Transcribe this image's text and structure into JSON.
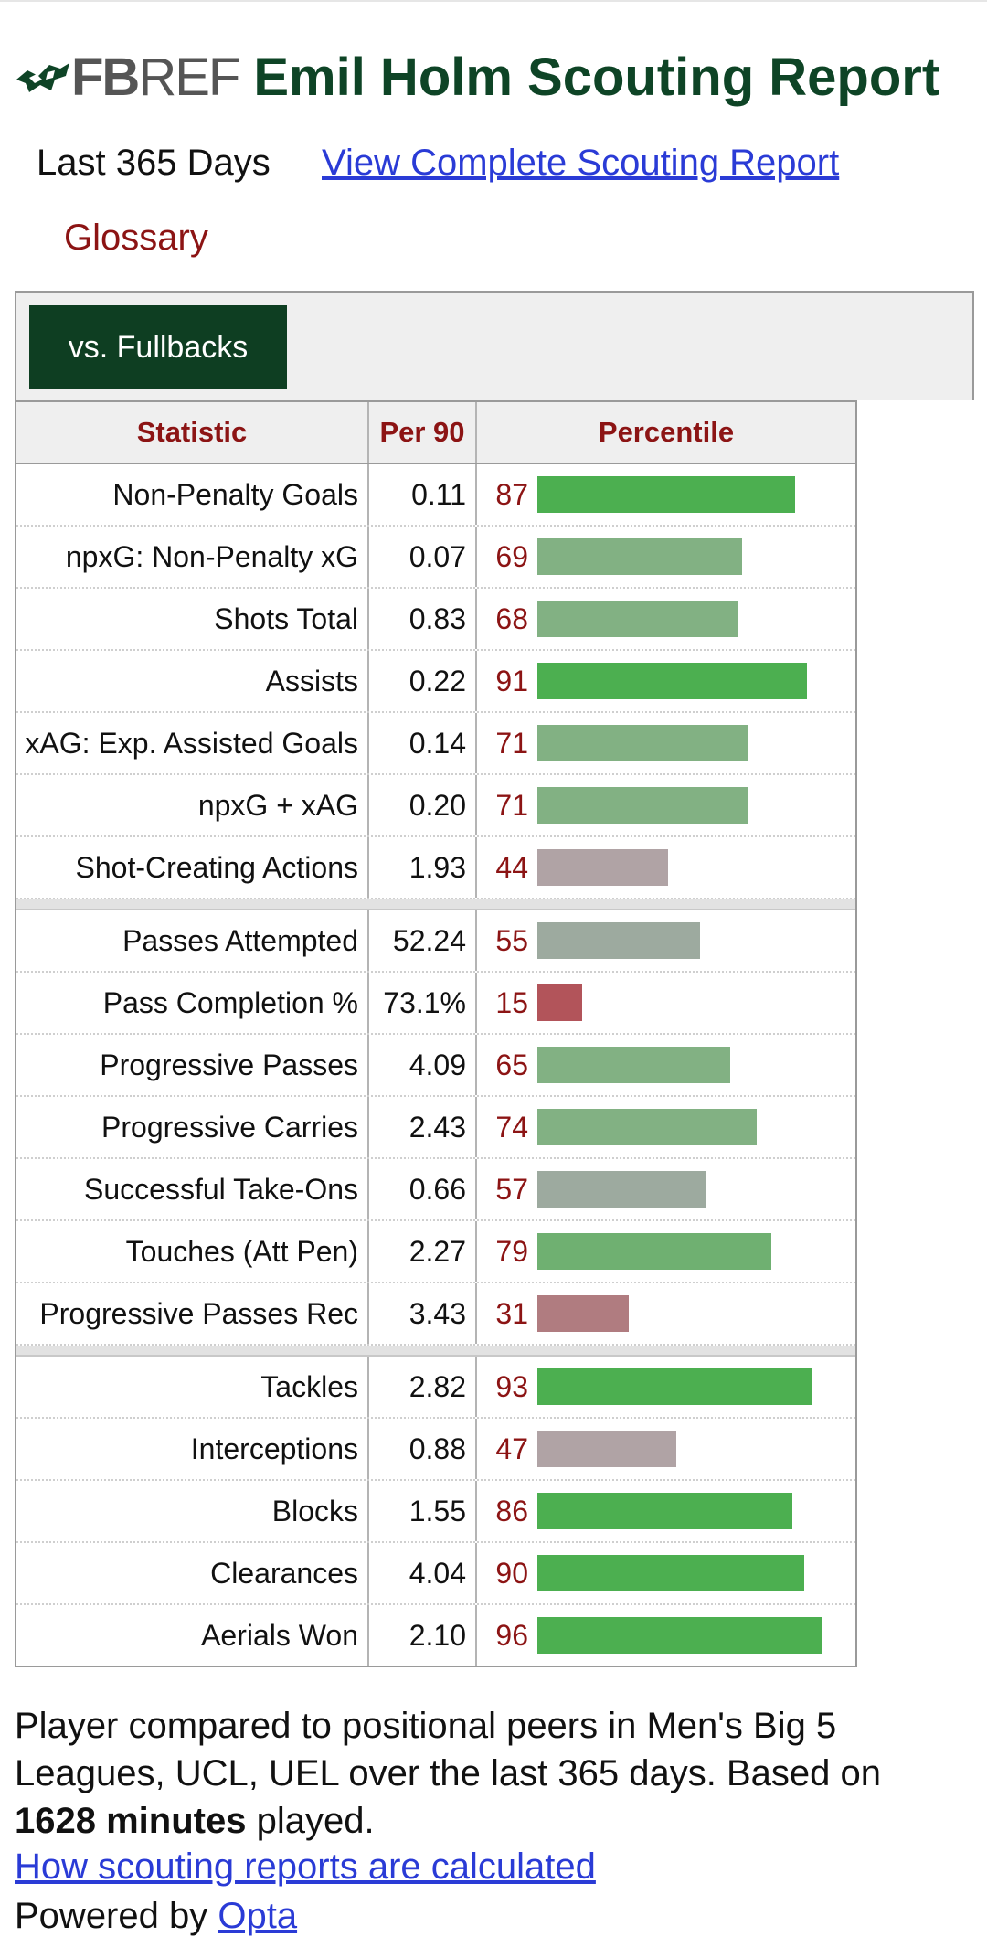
{
  "header": {
    "logo_fb": "FB",
    "logo_ref": "REF",
    "title": "Emil Holm Scouting Report"
  },
  "subheader": {
    "period": "Last 365 Days",
    "complete_link": "View Complete Scouting Report",
    "glossary": "Glossary"
  },
  "filter": {
    "label": "vs. Fullbacks"
  },
  "table": {
    "headers": {
      "statistic": "Statistic",
      "per90": "Per 90",
      "percentile": "Percentile"
    },
    "groups": [
      [
        {
          "stat": "Non-Penalty Goals",
          "per90": "0.11",
          "pct": 87
        },
        {
          "stat": "npxG: Non-Penalty xG",
          "per90": "0.07",
          "pct": 69
        },
        {
          "stat": "Shots Total",
          "per90": "0.83",
          "pct": 68
        },
        {
          "stat": "Assists",
          "per90": "0.22",
          "pct": 91
        },
        {
          "stat": "xAG: Exp. Assisted Goals",
          "per90": "0.14",
          "pct": 71
        },
        {
          "stat": "npxG + xAG",
          "per90": "0.20",
          "pct": 71
        },
        {
          "stat": "Shot-Creating Actions",
          "per90": "1.93",
          "pct": 44
        }
      ],
      [
        {
          "stat": "Passes Attempted",
          "per90": "52.24",
          "pct": 55
        },
        {
          "stat": "Pass Completion %",
          "per90": "73.1%",
          "pct": 15
        },
        {
          "stat": "Progressive Passes",
          "per90": "4.09",
          "pct": 65
        },
        {
          "stat": "Progressive Carries",
          "per90": "2.43",
          "pct": 74
        },
        {
          "stat": "Successful Take-Ons",
          "per90": "0.66",
          "pct": 57
        },
        {
          "stat": "Touches (Att Pen)",
          "per90": "2.27",
          "pct": 79
        },
        {
          "stat": "Progressive Passes Rec",
          "per90": "3.43",
          "pct": 31
        }
      ],
      [
        {
          "stat": "Tackles",
          "per90": "2.82",
          "pct": 93
        },
        {
          "stat": "Interceptions",
          "per90": "0.88",
          "pct": 47
        },
        {
          "stat": "Blocks",
          "per90": "1.55",
          "pct": 86
        },
        {
          "stat": "Clearances",
          "per90": "4.04",
          "pct": 90
        },
        {
          "stat": "Aerials Won",
          "per90": "2.10",
          "pct": 96
        }
      ]
    ]
  },
  "footer": {
    "text_before": "Player compared to positional peers in Men's Big 5 Leagues, UCL, UEL over the last 365 days. Based on ",
    "minutes": "1628 minutes",
    "text_after": " played.",
    "how_link": "How scouting reports are calculated",
    "powered_by": "Powered by ",
    "opta": "Opta"
  },
  "colors": {
    "title_green": "#0e4426",
    "button_green": "#0e3e22",
    "header_red": "#8c1414",
    "link_blue": "#2a3bd6"
  }
}
